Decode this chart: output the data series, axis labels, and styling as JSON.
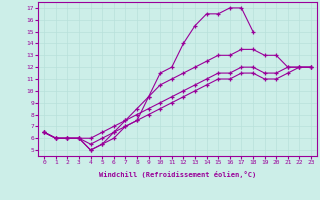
{
  "xlabel": "Windchill (Refroidissement éolien,°C)",
  "bg_color": "#cceee8",
  "line_color": "#990099",
  "grid_color": "#b8e0da",
  "xlim": [
    -0.5,
    23.5
  ],
  "ylim": [
    4.5,
    17.5
  ],
  "xticks": [
    0,
    1,
    2,
    3,
    4,
    5,
    6,
    7,
    8,
    9,
    10,
    11,
    12,
    13,
    14,
    15,
    16,
    17,
    18,
    19,
    20,
    21,
    22,
    23
  ],
  "yticks": [
    5,
    6,
    7,
    8,
    9,
    10,
    11,
    12,
    13,
    14,
    15,
    16,
    17
  ],
  "lines": [
    {
      "x": [
        0,
        1,
        2,
        3,
        4,
        5,
        6,
        7,
        8,
        9,
        10,
        11,
        12,
        13,
        14,
        15,
        16,
        17,
        18
      ],
      "y": [
        6.5,
        6.0,
        6.0,
        6.0,
        5.0,
        5.5,
        6.5,
        7.0,
        7.5,
        9.5,
        11.5,
        12.0,
        14.0,
        15.5,
        16.5,
        16.5,
        17.0,
        17.0,
        15.0
      ]
    },
    {
      "x": [
        0,
        1,
        2,
        3,
        4,
        5,
        6,
        7,
        8,
        9,
        10,
        11,
        12,
        13,
        14,
        15,
        16,
        17,
        18,
        19,
        20,
        21,
        22,
        23
      ],
      "y": [
        6.5,
        6.0,
        6.0,
        6.0,
        5.5,
        6.0,
        6.5,
        7.5,
        8.5,
        9.5,
        10.5,
        11.0,
        11.5,
        12.0,
        12.5,
        13.0,
        13.0,
        13.5,
        13.5,
        13.0,
        13.0,
        12.0,
        12.0,
        12.0
      ]
    },
    {
      "x": [
        0,
        1,
        2,
        3,
        4,
        5,
        6,
        7,
        8,
        9,
        10,
        11,
        12,
        13,
        14,
        15,
        16,
        17,
        18,
        19,
        20,
        21,
        22,
        23
      ],
      "y": [
        6.5,
        6.0,
        6.0,
        6.0,
        6.0,
        6.5,
        7.0,
        7.5,
        8.0,
        8.5,
        9.0,
        9.5,
        10.0,
        10.5,
        11.0,
        11.5,
        11.5,
        12.0,
        12.0,
        11.5,
        11.5,
        12.0,
        12.0,
        12.0
      ]
    },
    {
      "x": [
        0,
        1,
        2,
        3,
        4,
        5,
        6,
        7,
        8,
        9,
        10,
        11,
        12,
        13,
        14,
        15,
        16,
        17,
        18,
        19,
        20,
        21,
        22,
        23
      ],
      "y": [
        6.5,
        6.0,
        6.0,
        6.0,
        5.0,
        5.5,
        6.0,
        7.0,
        7.5,
        8.0,
        8.5,
        9.0,
        9.5,
        10.0,
        10.5,
        11.0,
        11.0,
        11.5,
        11.5,
        11.0,
        11.0,
        11.5,
        12.0,
        12.0
      ]
    }
  ]
}
